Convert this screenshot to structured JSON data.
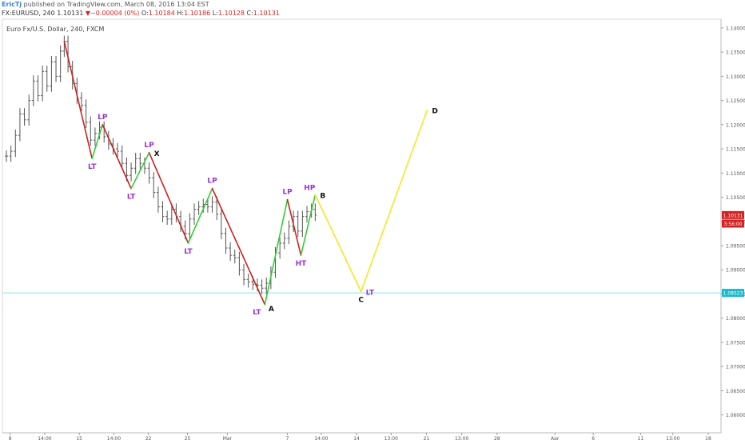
{
  "header": {
    "author": "EricTj",
    "published_text": "published on TradingView.com, March 08, 2016 13:04 EST"
  },
  "quote": {
    "symbol": "FX:EURUSD, 240",
    "last": "1.10131",
    "change": "−0.00004 (0%)",
    "o_label": "O:",
    "o": "1.10184",
    "h_label": "H:",
    "h": "1.10186",
    "l_label": "L:",
    "l": "1.10128",
    "c_label": "C:",
    "c": "1.10131",
    "colors": {
      "down": "#d22222",
      "text": "#333333"
    }
  },
  "chart_title": "Euro Fx/U.S. Dollar, 240, FXCM",
  "chart_data": {
    "type": "line",
    "instrument": "Euro Fx/U.S. Dollar",
    "timeframe": "240",
    "ylim": [
      1.0563,
      1.1418
    ],
    "y_ticks": [
      "1.14000",
      "1.13500",
      "1.13000",
      "1.12500",
      "1.12000",
      "1.11500",
      "1.11000",
      "1.10500",
      "1.10000",
      "1.09500",
      "1.09000",
      "1.08500",
      "1.08000",
      "1.07500",
      "1.07000",
      "1.06500",
      "1.06000"
    ],
    "x_ticks": [
      {
        "label": "8",
        "t": 0.5
      },
      {
        "label": "14:00",
        "t": 5.1
      },
      {
        "label": "15",
        "t": 9.7
      },
      {
        "label": "14:00",
        "t": 14.3
      },
      {
        "label": "22",
        "t": 18.9
      },
      {
        "label": "25",
        "t": 24.1
      },
      {
        "label": "Mar",
        "t": 29.4
      },
      {
        "label": "7",
        "t": 37.4
      },
      {
        "label": "14:00",
        "t": 41.9
      },
      {
        "label": "14",
        "t": 46.6
      },
      {
        "label": "13:00",
        "t": 51.2
      },
      {
        "label": "21",
        "t": 55.9
      },
      {
        "label": "13:00",
        "t": 60.6
      },
      {
        "label": "28",
        "t": 65.3
      },
      {
        "label": "Apr",
        "t": 73.0
      },
      {
        "label": "6",
        "t": 78.1
      },
      {
        "label": "11",
        "t": 84.4
      },
      {
        "label": "13:00",
        "t": 88.7
      },
      {
        "label": "18",
        "t": 93.4
      }
    ],
    "x_unit_note": "x values are trading days counted from the first '8' (Feb 8, 2016) tick",
    "price_labels": [
      {
        "text": "1.10131",
        "value": 1.10131,
        "color": "#d22222"
      },
      {
        "text": "3:56:00",
        "value": 1.09955,
        "color": "#d22222"
      },
      {
        "text": "1.08523",
        "value": 1.08523,
        "color": "#1cb8c8"
      }
    ],
    "horizontal_line": {
      "value": 1.08523,
      "color": "#8fe0ec"
    },
    "series": [
      {
        "style": "bars",
        "color": "#555555",
        "points": [
          {
            "x": 0.0,
            "y": 1.1135
          },
          {
            "x": 0.6,
            "y": 1.1145
          },
          {
            "x": 1.2,
            "y": 1.1178
          },
          {
            "x": 1.8,
            "y": 1.1222
          },
          {
            "x": 2.4,
            "y": 1.121
          },
          {
            "x": 3.0,
            "y": 1.125
          },
          {
            "x": 3.6,
            "y": 1.129
          },
          {
            "x": 4.2,
            "y": 1.126
          },
          {
            "x": 4.8,
            "y": 1.131
          },
          {
            "x": 5.4,
            "y": 1.128
          },
          {
            "x": 6.0,
            "y": 1.133
          },
          {
            "x": 6.6,
            "y": 1.13
          },
          {
            "x": 7.2,
            "y": 1.1352
          },
          {
            "x": 7.7,
            "y": 1.1372
          },
          {
            "x": 8.2,
            "y": 1.132
          },
          {
            "x": 8.8,
            "y": 1.1285
          },
          {
            "x": 9.4,
            "y": 1.1255
          },
          {
            "x": 10.0,
            "y": 1.124
          },
          {
            "x": 10.6,
            "y": 1.1205
          },
          {
            "x": 11.2,
            "y": 1.1168
          },
          {
            "x": 11.8,
            "y": 1.1182
          },
          {
            "x": 12.4,
            "y": 1.1195
          },
          {
            "x": 13.0,
            "y": 1.1175
          },
          {
            "x": 13.6,
            "y": 1.116
          },
          {
            "x": 14.2,
            "y": 1.115
          },
          {
            "x": 14.8,
            "y": 1.1145
          },
          {
            "x": 15.4,
            "y": 1.112
          },
          {
            "x": 16.0,
            "y": 1.1095
          },
          {
            "x": 16.6,
            "y": 1.111
          },
          {
            "x": 17.2,
            "y": 1.113
          },
          {
            "x": 17.8,
            "y": 1.112
          },
          {
            "x": 18.4,
            "y": 1.111
          },
          {
            "x": 19.0,
            "y": 1.109
          },
          {
            "x": 19.6,
            "y": 1.106
          },
          {
            "x": 20.2,
            "y": 1.103
          },
          {
            "x": 20.8,
            "y": 1.101
          },
          {
            "x": 21.4,
            "y": 1.1005
          },
          {
            "x": 22.0,
            "y": 1.1025
          },
          {
            "x": 22.6,
            "y": 1.101
          },
          {
            "x": 23.2,
            "y": 1.099
          },
          {
            "x": 23.8,
            "y": 1.0975
          },
          {
            "x": 24.4,
            "y": 1.1005
          },
          {
            "x": 25.0,
            "y": 1.1025
          },
          {
            "x": 25.6,
            "y": 1.103
          },
          {
            "x": 26.2,
            "y": 1.1035
          },
          {
            "x": 26.8,
            "y": 1.103
          },
          {
            "x": 27.4,
            "y": 1.104
          },
          {
            "x": 28.0,
            "y": 1.1015
          },
          {
            "x": 28.6,
            "y": 1.0975
          },
          {
            "x": 29.2,
            "y": 1.0945
          },
          {
            "x": 29.8,
            "y": 1.093
          },
          {
            "x": 30.4,
            "y": 1.0925
          },
          {
            "x": 31.0,
            "y": 1.09
          },
          {
            "x": 31.6,
            "y": 1.088
          },
          {
            "x": 32.2,
            "y": 1.0875
          },
          {
            "x": 32.8,
            "y": 1.087
          },
          {
            "x": 33.4,
            "y": 1.0868
          },
          {
            "x": 34.0,
            "y": 1.0862
          },
          {
            "x": 34.6,
            "y": 1.0872
          },
          {
            "x": 35.2,
            "y": 1.0895
          },
          {
            "x": 35.8,
            "y": 1.0935
          },
          {
            "x": 36.4,
            "y": 1.0955
          },
          {
            "x": 37.0,
            "y": 1.0965
          },
          {
            "x": 37.6,
            "y": 1.099
          },
          {
            "x": 38.2,
            "y": 1.101
          },
          {
            "x": 38.8,
            "y": 1.098
          },
          {
            "x": 39.4,
            "y": 1.101
          },
          {
            "x": 40.0,
            "y": 1.102
          },
          {
            "x": 40.6,
            "y": 1.1025
          },
          {
            "x": 41.1,
            "y": 1.1013
          }
        ]
      },
      {
        "name": "",
        "style": "zigzag",
        "down_color": "#cc2222",
        "up_color": "#33cc33",
        "points": [
          {
            "x": 7.7,
            "y": 1.1372
          },
          {
            "x": 11.4,
            "y": 1.113
          },
          {
            "x": 12.8,
            "y": 1.12
          },
          {
            "x": 16.6,
            "y": 1.1068
          },
          {
            "x": 19.0,
            "y": 1.1142
          },
          {
            "x": 24.2,
            "y": 1.0955
          },
          {
            "x": 27.4,
            "y": 1.1068
          },
          {
            "x": 34.4,
            "y": 1.0828
          },
          {
            "x": 37.4,
            "y": 1.1045
          },
          {
            "x": 39.2,
            "y": 1.093
          },
          {
            "x": 41.1,
            "y": 1.1055
          }
        ]
      },
      {
        "name": "",
        "style": "projection",
        "color": "#f2ea3c",
        "points": [
          {
            "x": 41.1,
            "y": 1.1055
          },
          {
            "x": 47.2,
            "y": 1.0855
          },
          {
            "x": 56.0,
            "y": 1.123
          }
        ]
      }
    ],
    "annotations": [
      {
        "text": "LP",
        "x": 12.8,
        "y": 1.12,
        "pos": "above",
        "color": "#9933cc"
      },
      {
        "text": "LT",
        "x": 11.4,
        "y": 1.113,
        "pos": "below",
        "color": "#9933cc"
      },
      {
        "text": "LP",
        "x": 19.0,
        "y": 1.1142,
        "pos": "above",
        "color": "#9933cc"
      },
      {
        "text": "X",
        "x": 19.0,
        "y": 1.1142,
        "pos": "right",
        "color": "#111111"
      },
      {
        "text": "LT",
        "x": 16.6,
        "y": 1.1068,
        "pos": "below",
        "color": "#9933cc"
      },
      {
        "text": "LP",
        "x": 27.4,
        "y": 1.1068,
        "pos": "above",
        "color": "#9933cc"
      },
      {
        "text": "LT",
        "x": 24.2,
        "y": 1.0955,
        "pos": "below",
        "color": "#9933cc"
      },
      {
        "text": "LT",
        "x": 34.4,
        "y": 1.0828,
        "pos": "belowleft",
        "color": "#9933cc"
      },
      {
        "text": "A",
        "x": 34.4,
        "y": 1.0828,
        "pos": "belowright",
        "color": "#111111"
      },
      {
        "text": "LP",
        "x": 37.4,
        "y": 1.1045,
        "pos": "above",
        "color": "#9933cc"
      },
      {
        "text": "HT",
        "x": 39.2,
        "y": 1.093,
        "pos": "below",
        "color": "#9933cc"
      },
      {
        "text": "HP",
        "x": 41.1,
        "y": 1.1055,
        "pos": "aboveleft",
        "color": "#9933cc"
      },
      {
        "text": "B",
        "x": 41.1,
        "y": 1.1055,
        "pos": "right",
        "color": "#111111"
      },
      {
        "text": "C",
        "x": 47.2,
        "y": 1.0855,
        "pos": "below",
        "color": "#111111"
      },
      {
        "text": "LT",
        "x": 47.2,
        "y": 1.0855,
        "pos": "right",
        "color": "#9933cc"
      },
      {
        "text": "D",
        "x": 56.0,
        "y": 1.123,
        "pos": "right",
        "color": "#111111"
      }
    ]
  }
}
